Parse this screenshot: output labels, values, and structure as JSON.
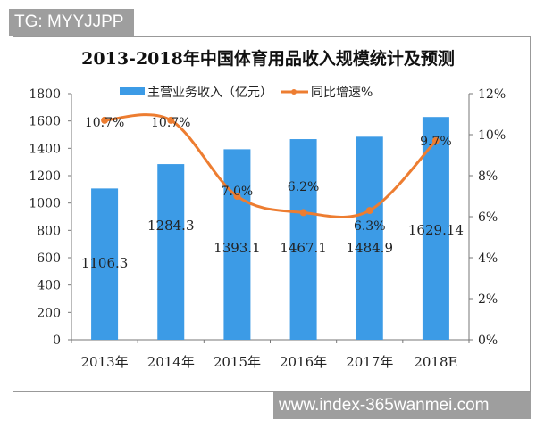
{
  "watermarks": {
    "top_left": "TG: MYYJJPP",
    "bottom_right": "www.index-365wanmei.com"
  },
  "chart_data": {
    "type": "bar+line",
    "title": "2013-2018年中国体育用品收入规模统计及预测",
    "categories": [
      "2013年",
      "2014年",
      "2015年",
      "2016年",
      "2017年",
      "2018E"
    ],
    "series": [
      {
        "name": "主营业务收入（亿元）",
        "type": "bar",
        "axis": "left",
        "color": "#3c9be6",
        "values": [
          1106.3,
          1284.3,
          1393.1,
          1467.1,
          1484.9,
          1629.14
        ],
        "labels": [
          "1106.3",
          "1284.3",
          "1393.1",
          "1467.1",
          "1484.9",
          "1629.14"
        ]
      },
      {
        "name": "同比增速%",
        "type": "line",
        "axis": "right",
        "color": "#ed7d31",
        "values": [
          10.7,
          10.7,
          7.0,
          6.2,
          6.3,
          9.7
        ],
        "labels": [
          "10.7%",
          "10.7%",
          "7.0%",
          "6.2%",
          "6.3%",
          "9.7%"
        ]
      }
    ],
    "left_axis": {
      "ylim": [
        0,
        1800
      ],
      "ticks": [
        "0",
        "200",
        "400",
        "600",
        "800",
        "1000",
        "1200",
        "1400",
        "1600",
        "1800"
      ]
    },
    "right_axis": {
      "ylim": [
        0,
        12
      ],
      "ticks": [
        "0%",
        "2%",
        "4%",
        "6%",
        "8%",
        "10%",
        "12%"
      ]
    },
    "legend": "top",
    "grid": false
  }
}
